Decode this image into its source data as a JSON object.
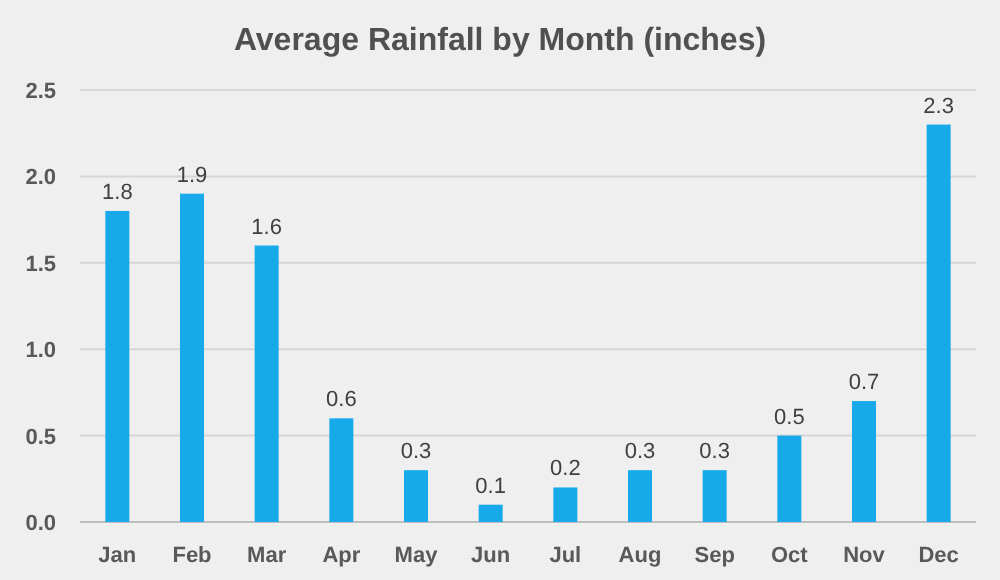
{
  "chart_data": {
    "type": "bar",
    "title": "Average Rainfall by Month (inches)",
    "categories": [
      "Jan",
      "Feb",
      "Mar",
      "Apr",
      "May",
      "Jun",
      "Jul",
      "Aug",
      "Sep",
      "Oct",
      "Nov",
      "Dec"
    ],
    "values": [
      1.8,
      1.9,
      1.6,
      0.6,
      0.3,
      0.1,
      0.2,
      0.3,
      0.3,
      0.5,
      0.7,
      2.3
    ],
    "color": "#18a9ea",
    "ylim": [
      0,
      2.5
    ],
    "yticks": [
      {
        "value": 0,
        "label": "0.0"
      },
      {
        "value": 0.5,
        "label": "0.5"
      },
      {
        "value": 1,
        "label": "1.0"
      },
      {
        "value": 1.5,
        "label": "1.5"
      },
      {
        "value": 2,
        "label": "2.0"
      },
      {
        "value": 2.5,
        "label": "2.5"
      }
    ],
    "grid": "y",
    "data_labels": true
  }
}
